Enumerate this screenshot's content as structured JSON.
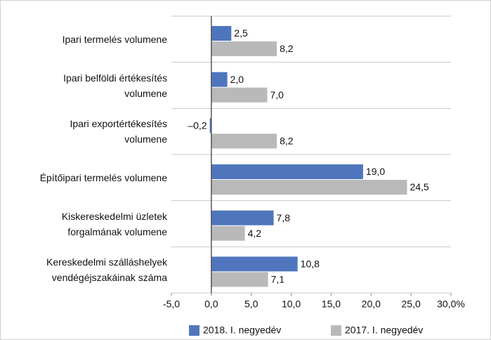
{
  "chart_data": {
    "type": "hbar",
    "categories": [
      "Ipari termelés volumene",
      "Ipari belföldi értékesítés\nvolumene",
      "Ipari exportértékesítés\nvolumene",
      "Építőipari termelés volumene",
      "Kiskereskedelmi üzletek\nforgalmának volumene",
      "Kereskedelmi szálláshelyek\nvendégéjszakáinak száma"
    ],
    "series": [
      {
        "name": "2018. I. negyedév",
        "color": "#4f76bd",
        "values": [
          2.5,
          2.0,
          -0.2,
          19.0,
          7.8,
          10.8
        ],
        "value_labels": [
          "2,5",
          "2,0",
          "–0,2",
          "19,0",
          "7,8",
          "10,8"
        ]
      },
      {
        "name": "2017. I. negyedév",
        "color": "#b9b9b9",
        "values": [
          8.2,
          7.0,
          8.2,
          24.5,
          4.2,
          7.1
        ],
        "value_labels": [
          "8,2",
          "7,0",
          "8,2",
          "24,5",
          "4,2",
          "7,1"
        ]
      }
    ],
    "xlim": [
      -5,
      30
    ],
    "xticks": [
      {
        "value": -5,
        "label": "-5,0"
      },
      {
        "value": 0,
        "label": "0,0"
      },
      {
        "value": 5,
        "label": "5,0"
      },
      {
        "value": 10,
        "label": "10,0"
      },
      {
        "value": 15,
        "label": "15,0"
      },
      {
        "value": 20,
        "label": "20,0"
      },
      {
        "value": 25,
        "label": "25,0"
      },
      {
        "value": 30,
        "label": "30,0%"
      }
    ],
    "legend": "bottom"
  }
}
